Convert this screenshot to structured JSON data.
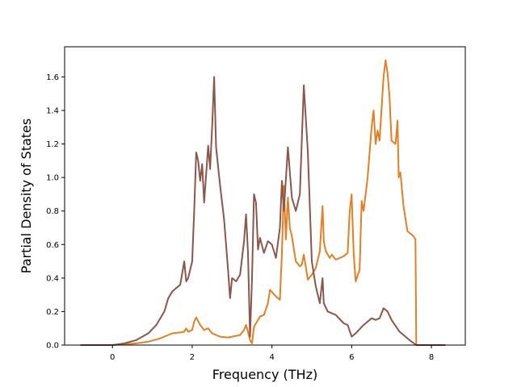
{
  "chart_data": {
    "type": "line",
    "xlabel": "Frequency (THz)",
    "ylabel": "Partial Density of States",
    "xlim": [
      -1.2,
      8.85
    ],
    "ylim": [
      0.0,
      1.78
    ],
    "xticks": [
      0,
      2,
      4,
      6,
      8
    ],
    "xtick_labels": [
      "0",
      "2",
      "4",
      "6",
      "8"
    ],
    "yticks": [
      0.0,
      0.2,
      0.4,
      0.6,
      0.8,
      1.0,
      1.2,
      1.4,
      1.6
    ],
    "ytick_labels": [
      "0.0",
      "0.2",
      "0.4",
      "0.6",
      "0.8",
      "1.0",
      "1.2",
      "1.4",
      "1.6"
    ],
    "grid": false,
    "legend": "none",
    "series": [
      {
        "color": "#e67e22",
        "points": [
          [
            -0.8,
            0
          ],
          [
            0,
            0
          ],
          [
            0.3,
            0.005
          ],
          [
            0.6,
            0.01
          ],
          [
            0.9,
            0.02
          ],
          [
            1.2,
            0.04
          ],
          [
            1.4,
            0.06
          ],
          [
            1.5,
            0.07
          ],
          [
            1.7,
            0.075
          ],
          [
            1.8,
            0.08
          ],
          [
            1.85,
            0.1
          ],
          [
            1.9,
            0.08
          ],
          [
            2.0,
            0.09
          ],
          [
            2.05,
            0.14
          ],
          [
            2.1,
            0.165
          ],
          [
            2.2,
            0.12
          ],
          [
            2.3,
            0.09
          ],
          [
            2.4,
            0.1
          ],
          [
            2.5,
            0.07
          ],
          [
            2.6,
            0.06
          ],
          [
            2.7,
            0.05
          ],
          [
            2.9,
            0.045
          ],
          [
            3.0,
            0.05
          ],
          [
            3.2,
            0.06
          ],
          [
            3.3,
            0.09
          ],
          [
            3.35,
            0.12
          ],
          [
            3.4,
            0.08
          ],
          [
            3.45,
            0.03
          ],
          [
            3.5,
            0.01
          ],
          [
            3.55,
            0.11
          ],
          [
            3.6,
            0.13
          ],
          [
            3.7,
            0.17
          ],
          [
            3.8,
            0.18
          ],
          [
            3.9,
            0.25
          ],
          [
            3.95,
            0.33
          ],
          [
            4.1,
            0.29
          ],
          [
            4.2,
            0.27
          ],
          [
            4.25,
            0.55
          ],
          [
            4.3,
            0.95
          ],
          [
            4.35,
            0.63
          ],
          [
            4.4,
            0.88
          ],
          [
            4.45,
            0.7
          ],
          [
            4.5,
            0.65
          ],
          [
            4.6,
            0.5
          ],
          [
            4.7,
            0.47
          ],
          [
            4.75,
            0.48
          ],
          [
            4.8,
            0.54
          ],
          [
            4.9,
            0.39
          ],
          [
            5.0,
            0.42
          ],
          [
            5.1,
            0.46
          ],
          [
            5.2,
            0.56
          ],
          [
            5.27,
            0.83
          ],
          [
            5.3,
            0.62
          ],
          [
            5.35,
            0.56
          ],
          [
            5.45,
            0.52
          ],
          [
            5.5,
            0.54
          ],
          [
            5.6,
            0.51
          ],
          [
            5.8,
            0.53
          ],
          [
            5.9,
            0.55
          ],
          [
            5.95,
            0.8
          ],
          [
            6.0,
            0.9
          ],
          [
            6.05,
            0.55
          ],
          [
            6.1,
            0.38
          ],
          [
            6.2,
            0.45
          ],
          [
            6.25,
            0.86
          ],
          [
            6.3,
            0.8
          ],
          [
            6.4,
            1.0
          ],
          [
            6.5,
            1.3
          ],
          [
            6.55,
            1.4
          ],
          [
            6.6,
            1.2
          ],
          [
            6.65,
            1.28
          ],
          [
            6.7,
            1.22
          ],
          [
            6.8,
            1.6
          ],
          [
            6.85,
            1.7
          ],
          [
            6.9,
            1.62
          ],
          [
            6.95,
            1.48
          ],
          [
            7.0,
            1.22
          ],
          [
            7.1,
            1.2
          ],
          [
            7.15,
            1.34
          ],
          [
            7.18,
            1.0
          ],
          [
            7.22,
            1.03
          ],
          [
            7.3,
            0.83
          ],
          [
            7.4,
            0.68
          ],
          [
            7.55,
            0.65
          ],
          [
            7.6,
            0.63
          ],
          [
            7.62,
            0.0
          ],
          [
            8.35,
            0.0
          ]
        ]
      },
      {
        "color": "#8c564b",
        "points": [
          [
            -0.8,
            0
          ],
          [
            0,
            0
          ],
          [
            0.3,
            0.01
          ],
          [
            0.6,
            0.03
          ],
          [
            0.9,
            0.07
          ],
          [
            1.1,
            0.12
          ],
          [
            1.3,
            0.2
          ],
          [
            1.4,
            0.28
          ],
          [
            1.5,
            0.32
          ],
          [
            1.6,
            0.34
          ],
          [
            1.7,
            0.36
          ],
          [
            1.8,
            0.5
          ],
          [
            1.85,
            0.38
          ],
          [
            1.9,
            0.4
          ],
          [
            2.0,
            0.5
          ],
          [
            2.05,
            0.8
          ],
          [
            2.1,
            1.15
          ],
          [
            2.15,
            1.1
          ],
          [
            2.2,
            0.98
          ],
          [
            2.25,
            1.08
          ],
          [
            2.3,
            0.85
          ],
          [
            2.4,
            1.19
          ],
          [
            2.45,
            1.05
          ],
          [
            2.5,
            1.3
          ],
          [
            2.55,
            1.6
          ],
          [
            2.6,
            1.18
          ],
          [
            2.7,
            0.95
          ],
          [
            2.8,
            0.75
          ],
          [
            2.9,
            0.45
          ],
          [
            2.95,
            0.28
          ],
          [
            3.0,
            0.4
          ],
          [
            3.1,
            0.38
          ],
          [
            3.2,
            0.42
          ],
          [
            3.3,
            0.62
          ],
          [
            3.35,
            0.78
          ],
          [
            3.4,
            0.55
          ],
          [
            3.45,
            0.05
          ],
          [
            3.5,
            0.4
          ],
          [
            3.55,
            0.9
          ],
          [
            3.6,
            0.85
          ],
          [
            3.65,
            0.57
          ],
          [
            3.7,
            0.64
          ],
          [
            3.8,
            0.55
          ],
          [
            3.9,
            0.62
          ],
          [
            4.0,
            0.6
          ],
          [
            4.1,
            0.52
          ],
          [
            4.2,
            0.7
          ],
          [
            4.25,
            0.98
          ],
          [
            4.3,
            0.8
          ],
          [
            4.4,
            1.18
          ],
          [
            4.5,
            0.88
          ],
          [
            4.6,
            0.8
          ],
          [
            4.7,
            0.9
          ],
          [
            4.8,
            1.55
          ],
          [
            4.9,
            1.15
          ],
          [
            5.0,
            0.5
          ],
          [
            5.1,
            0.35
          ],
          [
            5.2,
            0.25
          ],
          [
            5.27,
            0.4
          ],
          [
            5.3,
            0.25
          ],
          [
            5.4,
            0.2
          ],
          [
            5.6,
            0.18
          ],
          [
            5.8,
            0.13
          ],
          [
            5.9,
            0.12
          ],
          [
            6.0,
            0.05
          ],
          [
            6.1,
            0.07
          ],
          [
            6.3,
            0.12
          ],
          [
            6.5,
            0.16
          ],
          [
            6.6,
            0.15
          ],
          [
            6.7,
            0.16
          ],
          [
            6.8,
            0.22
          ],
          [
            6.9,
            0.2
          ],
          [
            7.0,
            0.15
          ],
          [
            7.2,
            0.08
          ],
          [
            7.3,
            0.06
          ],
          [
            7.45,
            0.03
          ],
          [
            7.62,
            0.0
          ],
          [
            8.35,
            0.0
          ]
        ]
      }
    ]
  }
}
